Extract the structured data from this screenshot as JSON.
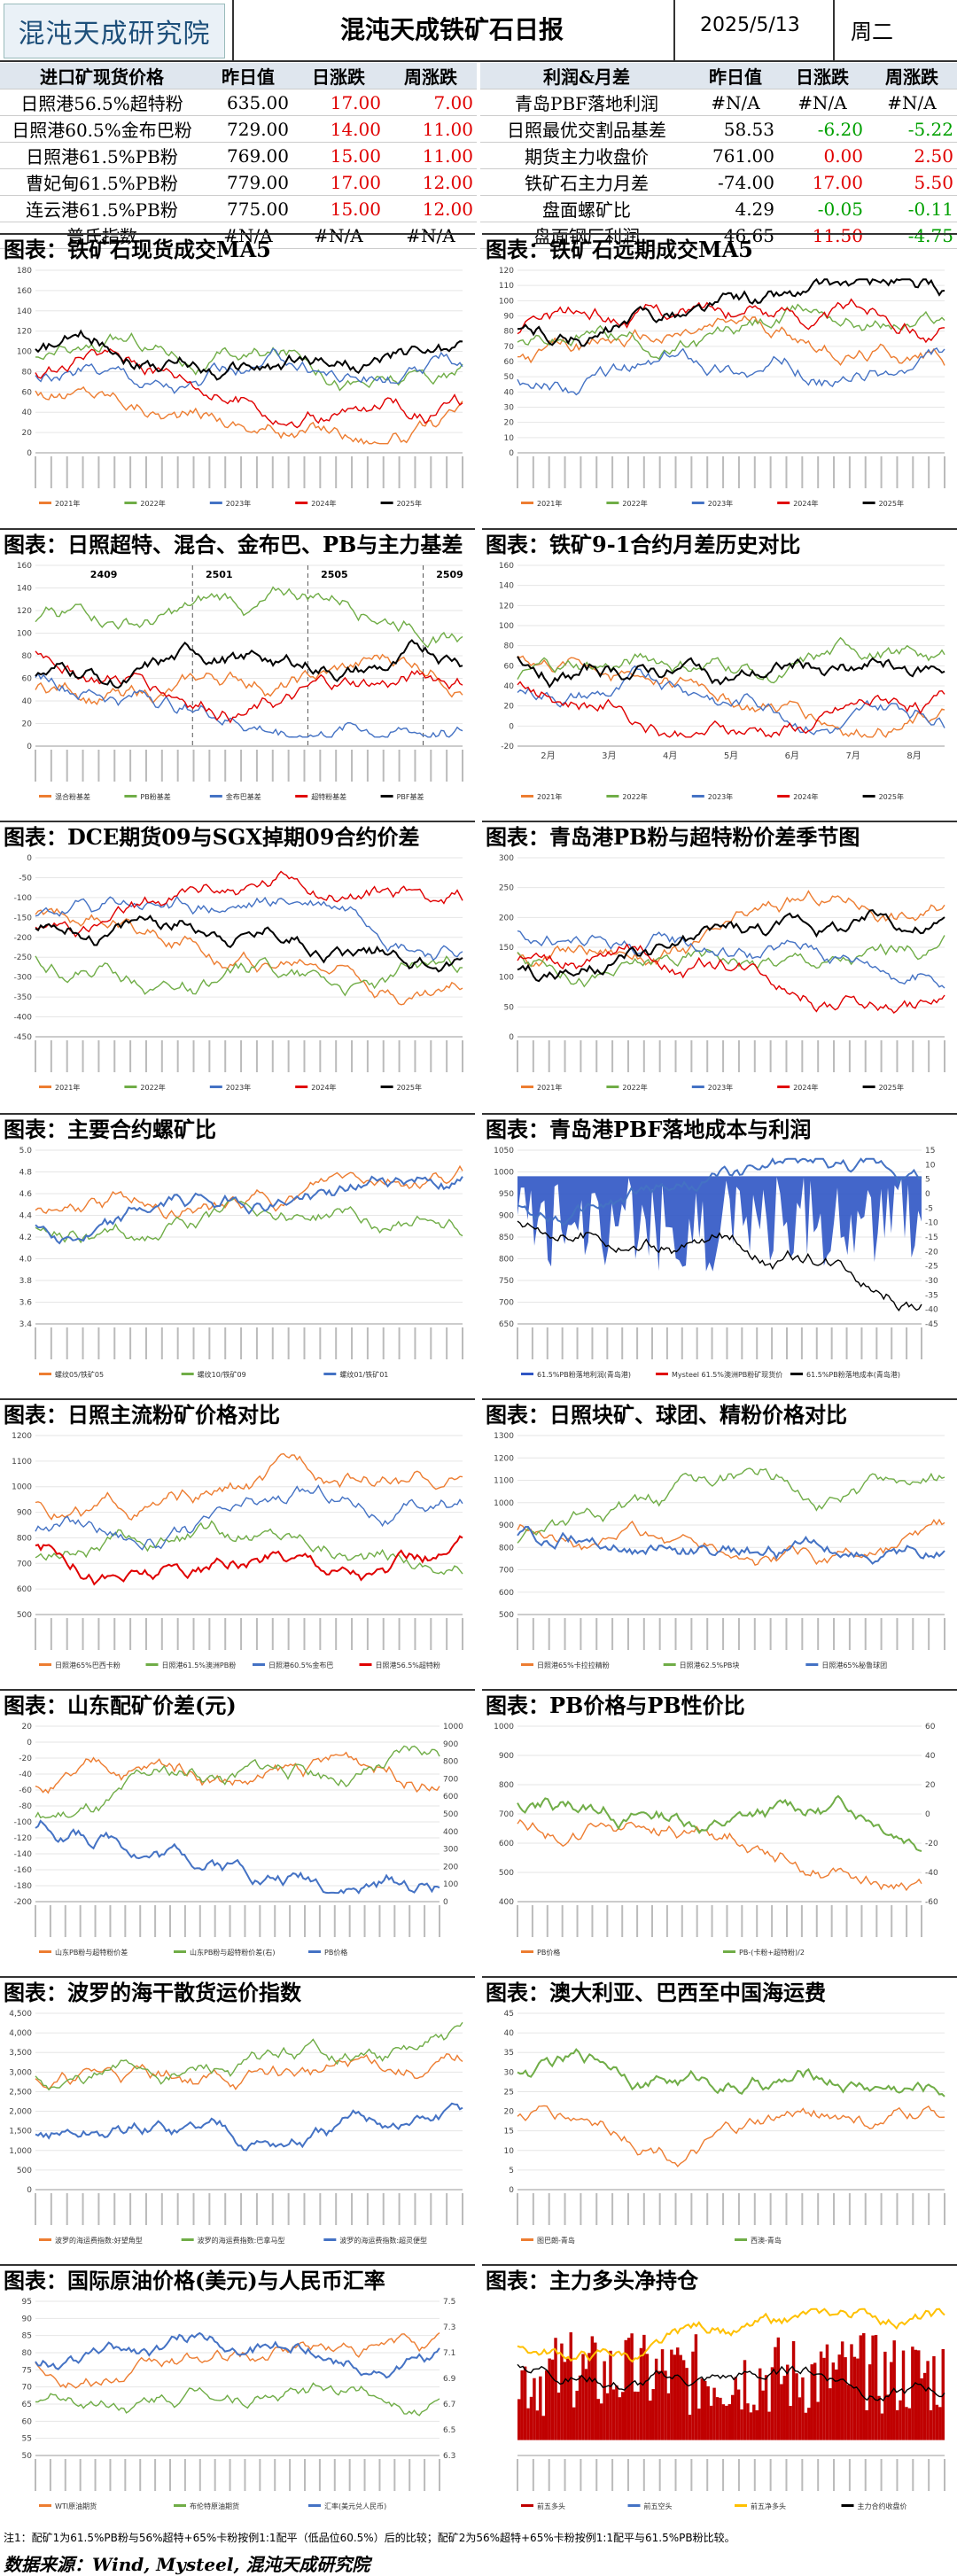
{
  "header": {
    "logo": "混沌天成研究院",
    "title": "混沌天成铁矿石日报",
    "date": "2025/5/13",
    "weekday": "周二"
  },
  "colors": {
    "up": "#e00000",
    "down": "#00a000",
    "header_bg": "#dfe6ee"
  },
  "table_left": {
    "headers": [
      "进口矿现货价格",
      "昨日值",
      "日涨跌",
      "周涨跌"
    ],
    "rows": [
      [
        "日照港56.5%超特粉",
        "635.00",
        "17.00",
        "7.00"
      ],
      [
        "日照港60.5%金布巴粉",
        "729.00",
        "14.00",
        "11.00"
      ],
      [
        "日照港61.5%PB粉",
        "769.00",
        "15.00",
        "11.00"
      ],
      [
        "曹妃甸61.5%PB粉",
        "779.00",
        "17.00",
        "12.00"
      ],
      [
        "连云港61.5%PB粉",
        "775.00",
        "15.00",
        "12.00"
      ],
      [
        "普氏指数",
        "#N/A",
        "#N/A",
        "#N/A"
      ]
    ]
  },
  "table_right": {
    "headers": [
      "利润&月差",
      "昨日值",
      "日涨跌",
      "周涨跌"
    ],
    "rows": [
      [
        "青岛PBF落地利润",
        "#N/A",
        "#N/A",
        "#N/A"
      ],
      [
        "日照最优交割品基差",
        "58.53",
        "-6.20",
        "-5.22"
      ],
      [
        "期货主力收盘价",
        "761.00",
        "0.00",
        "2.50"
      ],
      [
        "铁矿石主力月差",
        "-74.00",
        "17.00",
        "5.50"
      ],
      [
        "盘面螺矿比",
        "4.29",
        "-0.05",
        "-0.11"
      ],
      [
        "盘面钢厂利润",
        "46.65",
        "11.50",
        "-4.75"
      ]
    ]
  },
  "panels": [
    {
      "title": "图表：铁矿石现货成交MA5"
    },
    {
      "title": "图表：铁矿石远期成交MA5"
    },
    {
      "title": "图表：日照超特、混合、金布巴、PB与主力基差"
    },
    {
      "title": "图表：铁矿9-1合约月差历史对比"
    },
    {
      "title": "图表：DCE期货09与SGX掉期09合约价差"
    },
    {
      "title": "图表：青岛港PB粉与超特粉价差季节图"
    },
    {
      "title": "图表：主要合约螺矿比"
    },
    {
      "title": "图表：青岛港PBF落地成本与利润"
    },
    {
      "title": "图表：日照主流粉矿价格对比"
    },
    {
      "title": "图表：日照块矿、球团、精粉价格对比"
    },
    {
      "title": "图表：山东配矿价差(元)"
    },
    {
      "title": "图表：PB价格与PB性价比"
    },
    {
      "title": "图表：波罗的海干散货运价指数"
    },
    {
      "title": "图表：澳大利亚、巴西至中国海运费"
    },
    {
      "title": "图表：国际原油价格(美元)与人民币汇率"
    },
    {
      "title": "图表：主力多头净持仓"
    }
  ],
  "chart_data": [
    {
      "type": "line",
      "title": "图表：铁矿石现货成交MA5",
      "ylim": [
        0,
        180
      ],
      "yticks": [
        "0",
        "20",
        "40",
        "60",
        "80",
        "100",
        "120",
        "140",
        "160",
        "180"
      ],
      "series_names": [
        "2021年",
        "2022年",
        "2023年",
        "2024年",
        "2025年"
      ]
    },
    {
      "type": "line",
      "title": "图表：铁矿石远期成交MA5",
      "ylim": [
        0,
        120
      ],
      "yticks": [
        "0",
        "10",
        "20",
        "30",
        "40",
        "50",
        "60",
        "70",
        "80",
        "90",
        "100",
        "110",
        "120"
      ],
      "series_names": [
        "2021年",
        "2022年",
        "2023年",
        "2024年",
        "2025年"
      ]
    },
    {
      "type": "line",
      "title": "图表：日照超特、混合、金布巴、PB与主力基差",
      "ylim": [
        0,
        160
      ],
      "yticks": [
        "0",
        "20",
        "40",
        "60",
        "80",
        "100",
        "120",
        "140",
        "160"
      ],
      "annotations": [
        "2409",
        "2501",
        "2505",
        "2509"
      ],
      "series_names": [
        "混合粉基差",
        "PB粉基差",
        "金布巴基差",
        "超特粉基差",
        "PBF基差"
      ]
    },
    {
      "type": "line",
      "title": "图表：铁矿9-1合约月差历史对比",
      "ylim": [
        -20,
        160
      ],
      "yticks": [
        "-20",
        "0",
        "20",
        "40",
        "60",
        "80",
        "100",
        "120",
        "140",
        "160"
      ],
      "xticks": [
        "2月",
        "3月",
        "4月",
        "5月",
        "6月",
        "7月",
        "8月"
      ],
      "series_names": [
        "2021年",
        "2022年",
        "2023年",
        "2024年",
        "2025年"
      ]
    },
    {
      "type": "line",
      "title": "图表：DCE期货09与SGX掉期09合约价差",
      "ylim": [
        -450,
        0
      ],
      "yticks": [
        "0",
        "-50",
        "-100",
        "-150",
        "-200",
        "-250",
        "-300",
        "-350",
        "-400",
        "-450"
      ],
      "series_names": [
        "2021年",
        "2022年",
        "2023年",
        "2024年",
        "2025年"
      ]
    },
    {
      "type": "line",
      "title": "图表：青岛港PB粉与超特粉价差季节图",
      "ylim": [
        0,
        300
      ],
      "yticks": [
        "0",
        "50",
        "100",
        "150",
        "200",
        "250",
        "300"
      ],
      "series_names": [
        "2021年",
        "2022年",
        "2023年",
        "2024年",
        "2025年"
      ]
    },
    {
      "type": "line",
      "title": "图表：主要合约螺矿比",
      "ylim": [
        3.4,
        5.0
      ],
      "yticks": [
        "3.4",
        "3.6",
        "3.8",
        "4.0",
        "4.2",
        "4.4",
        "4.6",
        "4.8",
        "5.0"
      ],
      "series_names": [
        "螺纹05/铁矿05",
        "螺纹10/铁矿09",
        "螺纹01/铁矿01"
      ]
    },
    {
      "type": "area",
      "title": "图表：青岛港PBF落地成本与利润",
      "ylim": [
        650,
        1050
      ],
      "y2lim": [
        -45,
        15
      ],
      "yticks": [
        "650",
        "700",
        "750",
        "800",
        "850",
        "900",
        "950",
        "1000",
        "1050"
      ],
      "y2ticks": [
        "15",
        "10",
        "5",
        "0",
        "-5",
        "-10",
        "-15",
        "-20",
        "-25",
        "-30",
        "-35",
        "-40",
        "-45"
      ],
      "series_names": [
        "61.5%PB粉落地利润(青岛港)",
        "Mysteel 61.5%澳洲PB粉矿现货价",
        "61.5%PB粉落地成本(青岛港)"
      ]
    },
    {
      "type": "line",
      "title": "图表：日照主流粉矿价格对比",
      "ylim": [
        500,
        1200
      ],
      "yticks": [
        "500",
        "600",
        "700",
        "800",
        "900",
        "1000",
        "1100",
        "1200"
      ],
      "series_names": [
        "日照港65%巴西卡粉",
        "日照港61.5%澳洲PB粉",
        "日照港60.5%金布巴",
        "日照港56.5%超特粉"
      ]
    },
    {
      "type": "line",
      "title": "图表：日照块矿、球团、精粉价格对比",
      "ylim": [
        500,
        1300
      ],
      "yticks": [
        "500",
        "600",
        "700",
        "800",
        "900",
        "1000",
        "1100",
        "1200",
        "1300"
      ],
      "series_names": [
        "日照港65%卡拉拉精粉",
        "日照港62.5%PB块",
        "日照港65%秘鲁球团"
      ]
    },
    {
      "type": "line",
      "title": "图表：山东配矿价差(元)",
      "ylim": [
        -200,
        20
      ],
      "y2lim": [
        0,
        1000
      ],
      "yticks": [
        "20",
        "0",
        "-20",
        "-40",
        "-60",
        "-80",
        "-100",
        "-120",
        "-140",
        "-160",
        "-180",
        "-200"
      ],
      "y2ticks": [
        "1000",
        "900",
        "800",
        "700",
        "600",
        "500",
        "400",
        "300",
        "200",
        "100",
        "0"
      ],
      "series_names": [
        "山东PB粉与超特粉价差",
        "山东PB粉与超特粉价差(右)",
        "PB价格"
      ]
    },
    {
      "type": "line",
      "title": "图表：PB价格与PB性价比",
      "ylim": [
        400,
        1000
      ],
      "y2lim": [
        -60,
        60
      ],
      "yticks": [
        "400",
        "500",
        "600",
        "700",
        "800",
        "900",
        "1000"
      ],
      "y2ticks": [
        "60",
        "40",
        "20",
        "0",
        "-20",
        "-40",
        "-60"
      ],
      "series_names": [
        "PB价格",
        "PB-(卡粉+超特粉)/2"
      ]
    },
    {
      "type": "line",
      "title": "图表：波罗的海干散货运价指数",
      "ylim": [
        0,
        4500
      ],
      "yticks": [
        "0",
        "500",
        "1,000",
        "1,500",
        "2,000",
        "2,500",
        "3,000",
        "3,500",
        "4,000",
        "4,500"
      ],
      "series_names": [
        "波罗的海运费指数:好望角型",
        "波罗的海运费指数:巴拿马型",
        "波罗的海运费指数:超灵便型"
      ]
    },
    {
      "type": "line",
      "title": "图表：澳大利亚、巴西至中国海运费",
      "ylim": [
        0,
        45
      ],
      "yticks": [
        "0",
        "5",
        "10",
        "15",
        "20",
        "25",
        "30",
        "35",
        "40",
        "45"
      ],
      "series_names": [
        "图巴朗-青岛",
        "西澳-青岛"
      ]
    },
    {
      "type": "line",
      "title": "图表：国际原油价格(美元)与人民币汇率",
      "ylim": [
        50,
        95
      ],
      "y2lim": [
        6.3,
        7.5
      ],
      "yticks": [
        "50",
        "55",
        "60",
        "65",
        "70",
        "75",
        "80",
        "85",
        "90",
        "95"
      ],
      "y2ticks": [
        "7.5",
        "7.3",
        "7.1",
        "6.9",
        "6.7",
        "6.5",
        "6.3"
      ],
      "series_names": [
        "WTI原油期货",
        "布伦特原油期货",
        "汇率(美元兑人民币)"
      ]
    },
    {
      "type": "bar",
      "title": "图表：主力多头净持仓",
      "ylim": [
        -30000,
        160000
      ],
      "y2lim": [
        0,
        1200
      ],
      "series_names": [
        "前五多头",
        "前五空头",
        "前五净多头",
        "主力合约收盘价"
      ]
    }
  ],
  "footnote": "注1：配矿1为61.5%PB粉与56%超特+65%卡粉按例1:1配平（低品位60.5%）后的比较；配矿2为56%超特+65%卡粉按例1:1配平与61.5%PB粉比较。",
  "source": "数据来源：Wind, Mysteel, 混沌天成研究院"
}
